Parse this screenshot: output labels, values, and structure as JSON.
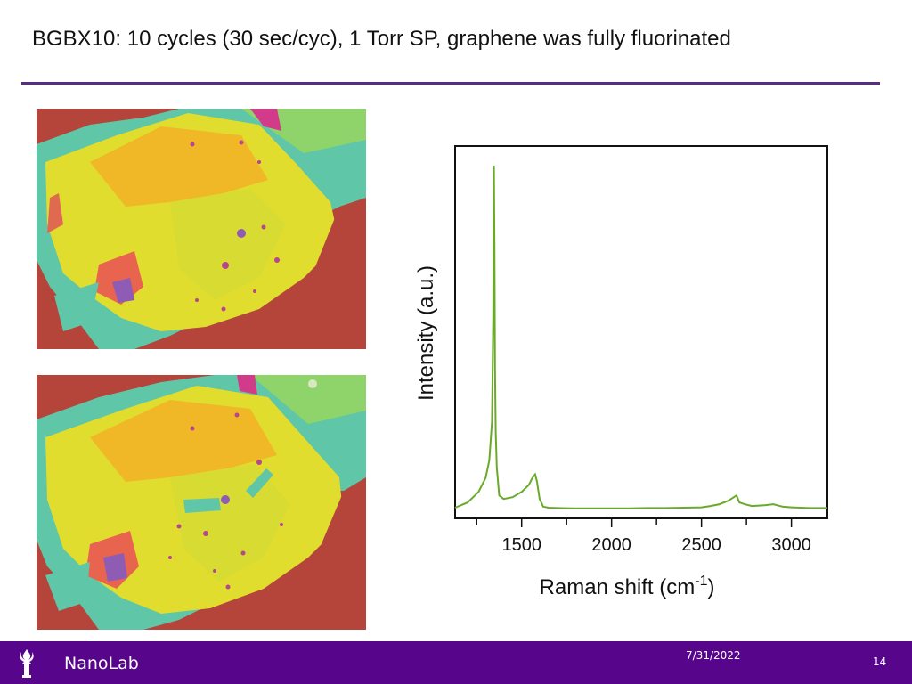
{
  "slide": {
    "title": "BGBX10: 10 cycles (30 sec/cyc), 1 Torr SP, graphene was fully fluorinated"
  },
  "images": {
    "top": "optical-micrograph",
    "bottom": "optical-micrograph"
  },
  "footer": {
    "org": "NanoLab",
    "date": "7/31/2022",
    "page": "14",
    "logo_icon": "torch-icon",
    "bg_color": "#57068c"
  },
  "chart_data": {
    "type": "line",
    "xlabel": "Raman shift (cm",
    "xlabel_sup": "-1",
    "xlabel_close": ")",
    "ylabel": "Intensity (a.u.)",
    "xlim": [
      1130,
      3200
    ],
    "ylim": [
      0,
      1.0
    ],
    "xticks": [
      1500,
      2000,
      2500,
      3000
    ],
    "xtick_labels": [
      "1500",
      "2000",
      "2500",
      "3000"
    ],
    "grid": false,
    "color": "#6aaa2a",
    "series": [
      {
        "x": [
          1130,
          1200,
          1260,
          1300,
          1320,
          1335,
          1342,
          1346,
          1349,
          1352,
          1356,
          1362,
          1375,
          1400,
          1450,
          1500,
          1540,
          1560,
          1575,
          1585,
          1600,
          1620,
          1650,
          1700,
          1800,
          1900,
          2000,
          2100,
          2200,
          2300,
          2400,
          2500,
          2550,
          2600,
          2650,
          2680,
          2695,
          2710,
          2740,
          2780,
          2850,
          2900,
          2950,
          3000,
          3050,
          3100,
          3150,
          3200
        ],
        "y": [
          0.005,
          0.02,
          0.05,
          0.09,
          0.14,
          0.25,
          0.55,
          0.98,
          0.75,
          0.4,
          0.22,
          0.12,
          0.04,
          0.03,
          0.035,
          0.05,
          0.07,
          0.09,
          0.1,
          0.08,
          0.03,
          0.008,
          0.005,
          0.004,
          0.003,
          0.003,
          0.003,
          0.003,
          0.004,
          0.004,
          0.005,
          0.006,
          0.01,
          0.015,
          0.025,
          0.035,
          0.04,
          0.02,
          0.015,
          0.01,
          0.012,
          0.015,
          0.008,
          0.006,
          0.005,
          0.004,
          0.004,
          0.004
        ]
      }
    ]
  }
}
